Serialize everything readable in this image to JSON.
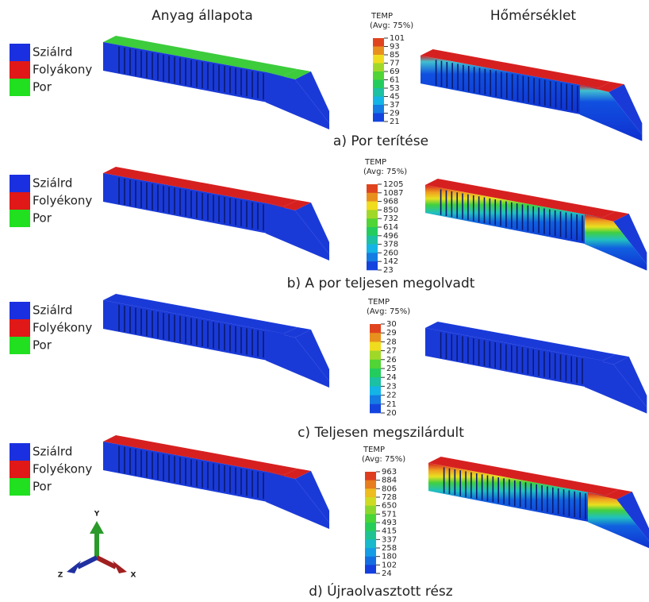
{
  "header": {
    "left": "Anyag állapota",
    "right": "Hőmérséklet"
  },
  "rows": [
    {
      "legend": [
        "Sziálrd",
        "Folyákony",
        "Por"
      ],
      "colorbar": {
        "title": "TEMP",
        "subtitle": "(Avg: 75%)",
        "ticks": [
          101,
          93,
          85,
          77,
          69,
          61,
          53,
          45,
          37,
          29,
          21
        ]
      },
      "caption": "a) Por terítése"
    },
    {
      "legend": [
        "Sziálrd",
        "Folyékony",
        "Por"
      ],
      "colorbar": {
        "title": "TEMP",
        "subtitle": "(Avg: 75%)",
        "ticks": [
          1205,
          1087,
          968,
          850,
          732,
          614,
          496,
          378,
          260,
          142,
          23
        ]
      },
      "caption": "b) A por teljesen megolvadt"
    },
    {
      "legend": [
        "Sziálrd",
        "Folyékony",
        "Por"
      ],
      "colorbar": {
        "title": "TEMP",
        "subtitle": "(Avg: 75%)",
        "ticks": [
          30,
          29,
          28,
          27,
          26,
          25,
          24,
          23,
          22,
          21,
          20
        ]
      },
      "caption": "c) Teljesen megszilárdult"
    },
    {
      "legend": [
        "Sziálrd",
        "Folyékony",
        "Por"
      ],
      "colorbar": {
        "title": "TEMP",
        "subtitle": "(Avg: 75%)",
        "ticks": [
          963,
          884,
          806,
          728,
          650,
          571,
          493,
          415,
          337,
          258,
          180,
          102,
          24
        ]
      },
      "caption": "d) Újraolvasztott rész"
    }
  ],
  "axes": {
    "y": "Y",
    "z": "Z",
    "x": "X"
  }
}
